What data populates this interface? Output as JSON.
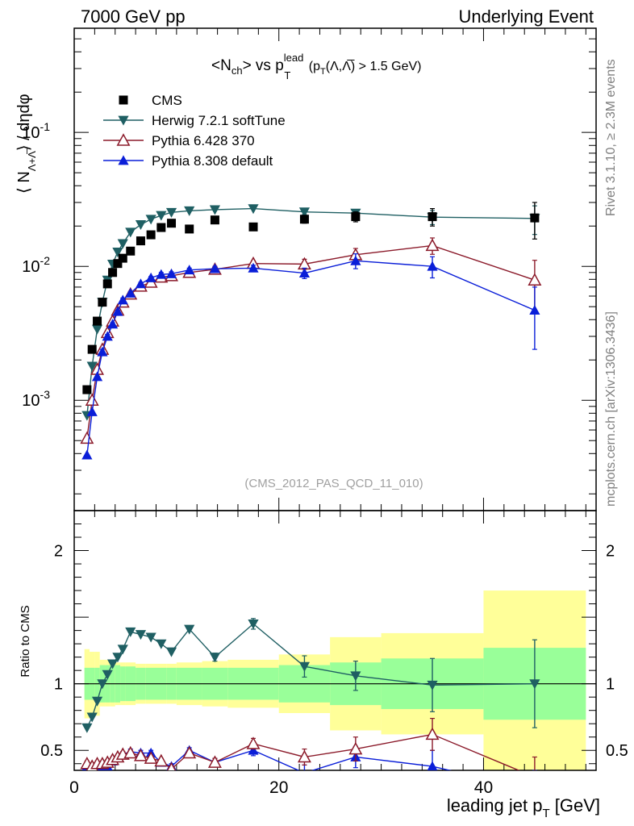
{
  "header": {
    "left": "7000 GeV pp",
    "right": "Underlying Event"
  },
  "side_labels": {
    "rivet": "Rivet 3.1.10, ≥ 2.3M events",
    "mcplots": "mcplots.cern.ch [arXiv:1306.3436]"
  },
  "analysis_tag": "(CMS_2012_PAS_QCD_11_010)",
  "main_title": {
    "prefix": "<N",
    "prefix_sub": "ch",
    "mid": "> vs p",
    "p_sup": "lead",
    "p_sub": "T",
    "paren_open": " (p",
    "paren_sub": "T",
    "paren_rest": "(Λ,Λ̅) > 1.5 GeV)"
  },
  "ylabel_main": {
    "open": "⟨ N",
    "sub": "Λ+Λ̅",
    "close": "⟩ / dηdφ"
  },
  "ylabel_ratio": "Ratio to CMS",
  "xlabel": {
    "text": "leading jet p",
    "sub": "T",
    "unit": " [GeV]"
  },
  "colors": {
    "cms": "#000000",
    "herwig": "#1f5f63",
    "pythia6": "#8b1a2a",
    "pythia8": "#0a1ed8",
    "band_inner": "#99ff99",
    "band_outer": "#ffff99",
    "tag": "#a0a0a0",
    "side": "#808080"
  },
  "chart_data": {
    "type": "scatter",
    "x_range": [
      0,
      51
    ],
    "x_ticks": [
      0,
      20,
      40
    ],
    "x_tick_labels": [
      "0",
      "20",
      "40"
    ],
    "main": {
      "yscale": "log",
      "y_range": [
        0.00015,
        0.6
      ],
      "y_ticks": [
        0.001,
        0.01,
        0.1
      ],
      "y_tick_labels": [
        "10^-3",
        "10^-2",
        "10^-1"
      ]
    },
    "ratio": {
      "y_range": [
        0.35,
        2.3
      ],
      "y_ticks": [
        0.5,
        1,
        2
      ],
      "y_tick_labels": [
        "0.5",
        "1",
        "2"
      ]
    },
    "legend": {
      "placement": "top-left",
      "entries": [
        {
          "key": "cms",
          "label": "CMS",
          "marker": "square-filled"
        },
        {
          "key": "herwig",
          "label": "Herwig 7.2.1 softTune",
          "marker": "triangle-down-filled"
        },
        {
          "key": "pythia6",
          "label": "Pythia 6.428 370",
          "marker": "triangle-up-open"
        },
        {
          "key": "pythia8",
          "label": "Pythia 8.308 default",
          "marker": "triangle-up-filled"
        }
      ]
    },
    "x": [
      1.25,
      1.75,
      2.25,
      2.75,
      3.25,
      3.75,
      4.25,
      4.75,
      5.5,
      6.5,
      7.5,
      8.5,
      9.5,
      11.25,
      13.75,
      17.5,
      22.5,
      27.5,
      35,
      45
    ],
    "series": [
      {
        "key": "cms",
        "name": "CMS",
        "values": [
          0.0012,
          0.0024,
          0.0039,
          0.0054,
          0.0074,
          0.009,
          0.0105,
          0.0115,
          0.013,
          0.0155,
          0.0172,
          0.0195,
          0.021,
          0.019,
          0.0222,
          0.0197,
          0.0225,
          0.0235,
          0.0235,
          0.023
        ],
        "errors": [
          5e-05,
          0.0001,
          0.0001,
          0.0002,
          0.0002,
          0.0003,
          0.0003,
          0.0004,
          0.0004,
          0.0005,
          0.0006,
          0.0007,
          0.0008,
          0.0008,
          0.0009,
          0.0009,
          0.0015,
          0.002,
          0.0035,
          0.007
        ]
      },
      {
        "key": "herwig",
        "name": "Herwig 7.2.1 softTune",
        "values": [
          0.00077,
          0.0018,
          0.0034,
          0.0054,
          0.0079,
          0.0104,
          0.0128,
          0.0148,
          0.018,
          0.0205,
          0.0225,
          0.024,
          0.0253,
          0.026,
          0.0265,
          0.027,
          0.0255,
          0.025,
          0.0233,
          0.0228
        ],
        "errors": [
          0,
          0,
          0,
          0,
          0,
          0,
          0,
          0,
          0,
          0,
          0,
          0,
          0,
          0,
          0,
          0,
          0.0011,
          0.0015,
          0.0028,
          0.0055
        ]
      },
      {
        "key": "pythia6",
        "name": "Pythia 6.428 370",
        "values": [
          0.00052,
          0.001,
          0.0017,
          0.0024,
          0.0032,
          0.0039,
          0.0047,
          0.0054,
          0.0062,
          0.0071,
          0.0076,
          0.0083,
          0.0085,
          0.009,
          0.0095,
          0.0105,
          0.0104,
          0.0122,
          0.0143,
          0.0079
        ],
        "errors": [
          0,
          0,
          0,
          0.0001,
          0.0001,
          0.0001,
          0.0001,
          0.0002,
          0.0002,
          0.0002,
          0.0002,
          0.0003,
          0.0003,
          0.0003,
          0.0004,
          0.0005,
          0.0009,
          0.0014,
          0.002,
          0.0032
        ]
      },
      {
        "key": "pythia8",
        "name": "Pythia 8.308 default",
        "values": [
          0.00039,
          0.00082,
          0.0015,
          0.0023,
          0.003,
          0.0037,
          0.0046,
          0.0056,
          0.0063,
          0.0074,
          0.0082,
          0.0087,
          0.0088,
          0.0094,
          0.0096,
          0.0097,
          0.0089,
          0.011,
          0.01,
          0.0047
        ],
        "errors": [
          0,
          0,
          0,
          0.0001,
          0.0001,
          0.0001,
          0.0001,
          0.0002,
          0.0002,
          0.0002,
          0.0002,
          0.0003,
          0.0003,
          0.0003,
          0.0004,
          0.0005,
          0.0008,
          0.0014,
          0.0018,
          0.0023
        ]
      }
    ],
    "ratio_series": [
      {
        "key": "herwig",
        "values": [
          0.67,
          0.75,
          0.87,
          1.0,
          1.07,
          1.15,
          1.2,
          1.26,
          1.39,
          1.37,
          1.35,
          1.3,
          1.24,
          1.41,
          1.2,
          1.45,
          1.13,
          1.06,
          0.99,
          1.0
        ],
        "errors": [
          0,
          0,
          0,
          0,
          0,
          0,
          0,
          0,
          0,
          0,
          0,
          0,
          0,
          0,
          0.03,
          0.04,
          0.08,
          0.11,
          0.2,
          0.33
        ]
      },
      {
        "key": "pythia6",
        "values": [
          0.4,
          0.38,
          0.4,
          0.4,
          0.41,
          0.43,
          0.45,
          0.47,
          0.48,
          0.46,
          0.44,
          0.42,
          0.36,
          0.48,
          0.41,
          0.55,
          0.45,
          0.51,
          0.62,
          0.3
        ],
        "errors": [
          0.02,
          0.02,
          0.02,
          0.02,
          0.02,
          0.02,
          0.02,
          0.02,
          0.02,
          0.02,
          0.02,
          0.02,
          0.02,
          0.02,
          0.03,
          0.04,
          0.06,
          0.09,
          0.12,
          0.15
        ]
      },
      {
        "key": "pythia8",
        "values": [
          0.38,
          0.36,
          0.37,
          0.38,
          0.38,
          0.42,
          0.45,
          0.47,
          0.49,
          0.48,
          0.48,
          0.41,
          0.38,
          0.5,
          0.41,
          0.5,
          0.33,
          0.45,
          0.38,
          0.2
        ],
        "errors": [
          0.02,
          0.02,
          0.02,
          0.02,
          0.02,
          0.02,
          0.02,
          0.02,
          0.02,
          0.02,
          0.02,
          0.02,
          0.02,
          0.02,
          0.03,
          0.04,
          0.06,
          0.08,
          0.12,
          0.15
        ]
      }
    ],
    "bands": {
      "x_edges": [
        1,
        1.5,
        2,
        2.5,
        3,
        3.5,
        4,
        4.5,
        5,
        6,
        7,
        8,
        9,
        10,
        12.5,
        15,
        20,
        25,
        30,
        40,
        50
      ],
      "inner_lo": [
        0.88,
        0.88,
        0.88,
        0.86,
        0.86,
        0.86,
        0.86,
        0.87,
        0.87,
        0.88,
        0.88,
        0.88,
        0.88,
        0.88,
        0.88,
        0.88,
        0.86,
        0.84,
        0.81,
        0.73
      ],
      "inner_hi": [
        1.12,
        1.12,
        1.12,
        1.14,
        1.14,
        1.14,
        1.14,
        1.13,
        1.13,
        1.12,
        1.12,
        1.12,
        1.12,
        1.12,
        1.12,
        1.12,
        1.14,
        1.16,
        1.19,
        1.27
      ],
      "outer_lo": [
        0.74,
        0.76,
        0.76,
        0.83,
        0.83,
        0.83,
        0.84,
        0.84,
        0.84,
        0.85,
        0.85,
        0.85,
        0.85,
        0.84,
        0.83,
        0.82,
        0.78,
        0.65,
        0.62,
        0.3
      ],
      "outer_hi": [
        1.26,
        1.24,
        1.24,
        1.18,
        1.18,
        1.17,
        1.16,
        1.16,
        1.16,
        1.15,
        1.15,
        1.15,
        1.15,
        1.16,
        1.17,
        1.18,
        1.22,
        1.35,
        1.38,
        1.7
      ]
    }
  }
}
